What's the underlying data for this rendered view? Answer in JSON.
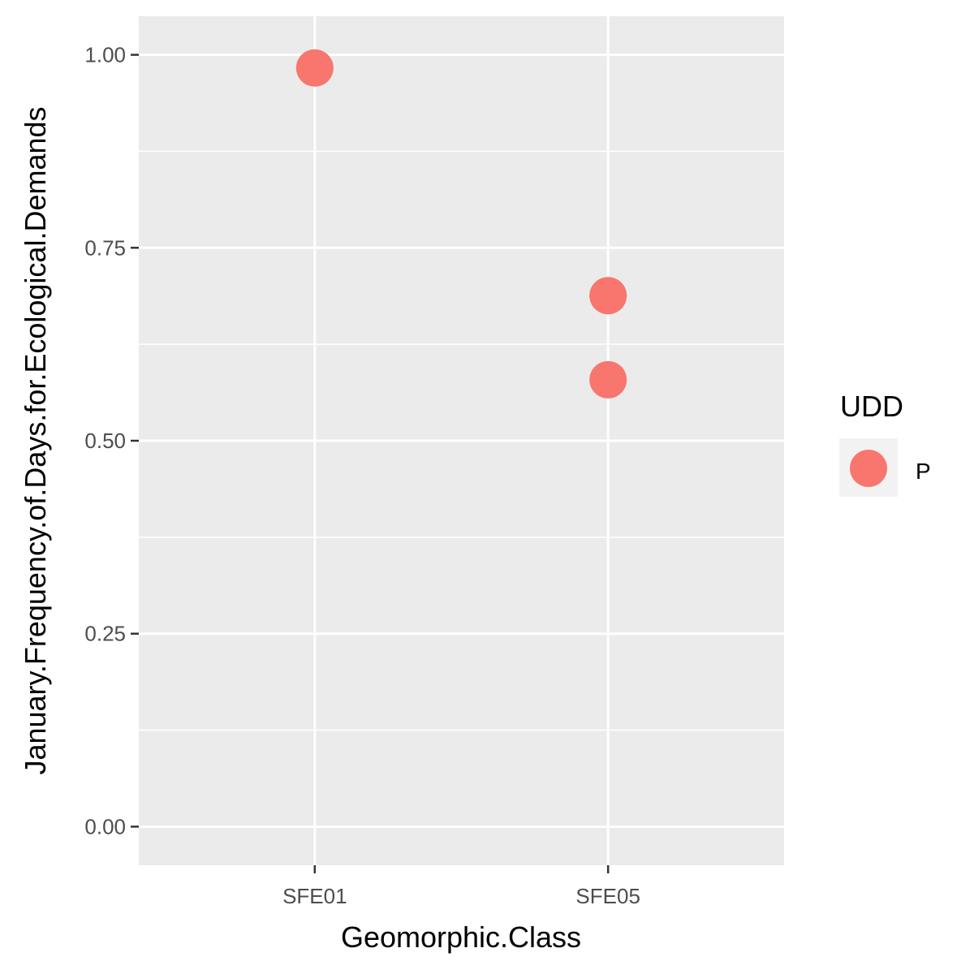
{
  "chart_data": {
    "type": "scatter",
    "title": "",
    "xlabel": "Geomorphic.Class",
    "ylabel": "January.Frequency.of.Days.for.Ecological.Demands",
    "categories": [
      "SFE01",
      "SFE05"
    ],
    "yticks": [
      "0.00",
      "0.25",
      "0.50",
      "0.75",
      "1.00"
    ],
    "ylim": [
      -0.05,
      1.05
    ],
    "grid": true,
    "legend": {
      "title": "UDD",
      "position": "right",
      "entries": [
        {
          "label": "P",
          "color": "#F8766D"
        }
      ]
    },
    "series": [
      {
        "name": "P",
        "color": "#F8766D",
        "points": [
          {
            "x": "SFE01",
            "y": 0.983
          },
          {
            "x": "SFE05",
            "y": 0.688
          },
          {
            "x": "SFE05",
            "y": 0.579
          }
        ]
      }
    ]
  }
}
